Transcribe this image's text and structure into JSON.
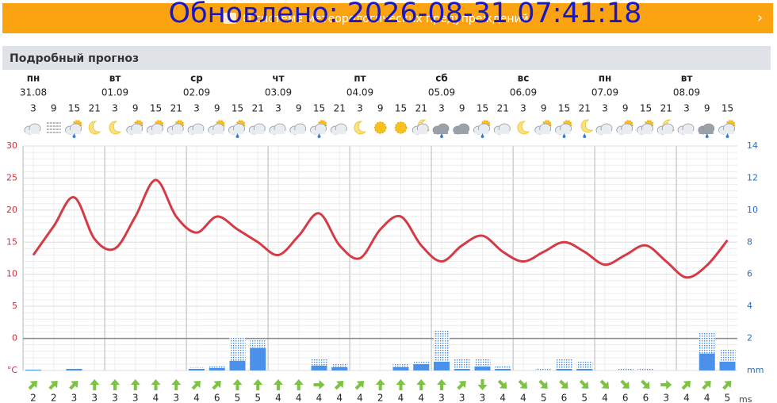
{
  "banner": {
    "text": "О системе метеорологических предупреждений"
  },
  "overlay": {
    "updated": "Обновлено: 2026-08-31 07:41:18"
  },
  "section": {
    "title": "Подробный прогноз"
  },
  "chart_data": {
    "type": "line",
    "days": [
      {
        "weekday": "пн",
        "date": "31.08"
      },
      {
        "weekday": "вт",
        "date": "01.09"
      },
      {
        "weekday": "ср",
        "date": "02.09"
      },
      {
        "weekday": "чт",
        "date": "03.09"
      },
      {
        "weekday": "пт",
        "date": "04.09"
      },
      {
        "weekday": "сб",
        "date": "05.09"
      },
      {
        "weekday": "вс",
        "date": "06.09"
      },
      {
        "weekday": "пн",
        "date": "07.09"
      },
      {
        "weekday": "вт",
        "date": "08.09"
      }
    ],
    "categories": [
      "3",
      "9",
      "15",
      "21",
      "3",
      "9",
      "15",
      "21",
      "3",
      "9",
      "15",
      "21",
      "3",
      "9",
      "15",
      "21",
      "3",
      "9",
      "15",
      "21",
      "3",
      "9",
      "15",
      "21",
      "3",
      "9",
      "15",
      "21",
      "3",
      "9",
      "15",
      "21",
      "3",
      "9",
      "15"
    ],
    "series": [
      {
        "type": "line",
        "color": "#d63a45",
        "values": [
          13,
          17.5,
          22,
          15.5,
          14,
          19,
          24.7,
          19,
          16.5,
          19,
          17,
          15,
          13,
          16,
          19.5,
          14.5,
          12.5,
          17,
          19,
          14.5,
          12,
          14.5,
          16,
          13.5,
          12,
          13.5,
          15,
          13.5,
          11.5,
          13,
          14.5,
          12,
          9.5,
          11.4,
          15.3
        ]
      },
      {
        "type": "bar",
        "axis": "y2",
        "style": "dotted",
        "color": "#3d86e6",
        "values": [
          0.05,
          null,
          0.1,
          null,
          null,
          null,
          null,
          null,
          0.2,
          0.3,
          2.1,
          1.9,
          null,
          null,
          0.7,
          0.4,
          null,
          null,
          0.4,
          0.6,
          2.5,
          0.7,
          0.7,
          0.3,
          null,
          0.1,
          0.7,
          0.55,
          null,
          0.1,
          0.1,
          null,
          null,
          2.35,
          1.3
        ]
      },
      {
        "type": "bar",
        "axis": "y2",
        "style": "solid",
        "color": "#4b90ea",
        "values": [
          0.05,
          null,
          0.1,
          null,
          null,
          null,
          null,
          null,
          0.1,
          0.15,
          0.6,
          1.4,
          null,
          null,
          0.3,
          0.2,
          null,
          null,
          0.2,
          0.4,
          0.55,
          0.1,
          0.25,
          0.1,
          null,
          null,
          0.1,
          0.1,
          null,
          null,
          null,
          null,
          null,
          1.05,
          0.55
        ]
      }
    ],
    "ylim": [
      -5,
      30
    ],
    "yticks": [
      {
        "value": -5,
        "label": "°C"
      },
      0,
      5,
      10,
      15,
      20,
      25,
      30
    ],
    "y2lim": [
      0,
      14
    ],
    "y2ticks": [
      {
        "value": 0,
        "label": "mm"
      },
      2,
      4,
      6,
      8,
      10,
      12,
      14
    ],
    "grid": true,
    "wind": {
      "unit": "ms",
      "color": "#7cc243",
      "speeds": [
        2,
        2,
        3,
        3,
        3,
        3,
        4,
        3,
        4,
        6,
        5,
        5,
        4,
        4,
        4,
        4,
        4,
        2,
        4,
        4,
        3,
        3,
        3,
        4,
        4,
        5,
        6,
        5,
        4,
        6,
        6,
        3,
        4,
        4,
        5
      ],
      "directions": [
        45,
        45,
        45,
        0,
        0,
        0,
        0,
        0,
        45,
        45,
        0,
        0,
        0,
        0,
        90,
        45,
        45,
        0,
        0,
        0,
        0,
        45,
        180,
        135,
        135,
        135,
        135,
        135,
        135,
        135,
        135,
        90,
        45,
        45,
        45
      ]
    }
  }
}
